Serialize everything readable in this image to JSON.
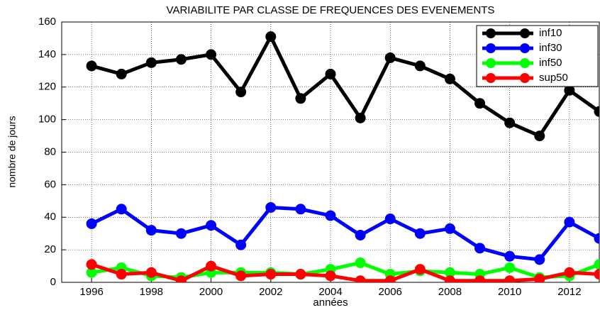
{
  "chart_data": {
    "type": "line",
    "title": "VARIABILITE PAR CLASSE DE FREQUENCES DES EVENEMENTS",
    "xlabel": "années",
    "ylabel": "nombre de jours",
    "x": [
      1996,
      1997,
      1998,
      1999,
      2000,
      2001,
      2002,
      2003,
      2004,
      2005,
      2006,
      2007,
      2008,
      2009,
      2010,
      2011,
      2012,
      2013
    ],
    "series": [
      {
        "name": "inf10",
        "color": "#000000",
        "values": [
          133,
          128,
          135,
          137,
          140,
          117,
          151,
          113,
          128,
          101,
          138,
          133,
          125,
          110,
          98,
          90,
          118,
          105
        ]
      },
      {
        "name": "inf30",
        "color": "#0000ff",
        "values": [
          36,
          45,
          32,
          30,
          35,
          23,
          46,
          45,
          41,
          29,
          39,
          30,
          33,
          21,
          16,
          14,
          37,
          27
        ]
      },
      {
        "name": "inf50",
        "color": "#00ff00",
        "values": [
          6,
          9,
          4,
          3,
          6,
          6,
          6,
          5,
          8,
          12,
          5,
          7,
          6,
          5,
          9,
          3,
          4,
          11
        ]
      },
      {
        "name": "sup50",
        "color": "#ff0000",
        "values": [
          11,
          5,
          6,
          1,
          10,
          4,
          5,
          5,
          4,
          1,
          1,
          8,
          1,
          1,
          1,
          2,
          6,
          5
        ]
      }
    ],
    "xlim": [
      1995,
      2013
    ],
    "xticks": [
      1996,
      1998,
      2000,
      2002,
      2004,
      2006,
      2008,
      2010,
      2012
    ],
    "ylim": [
      0,
      160
    ],
    "yticks": [
      0,
      20,
      40,
      60,
      80,
      100,
      120,
      140,
      160
    ],
    "grid": true,
    "legend": "upper right"
  }
}
